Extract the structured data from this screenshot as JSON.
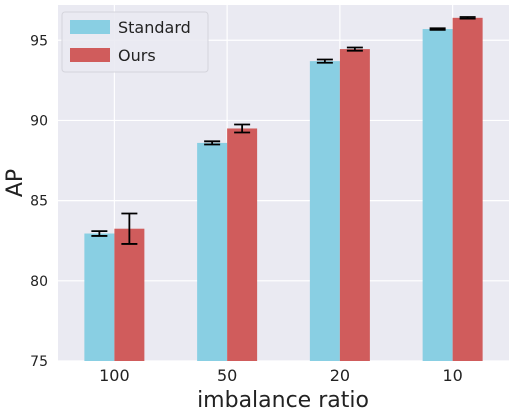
{
  "chart_data": {
    "type": "bar",
    "title": "",
    "xlabel": "imbalance ratio",
    "ylabel": "AP",
    "categories": [
      "100",
      "50",
      "20",
      "10"
    ],
    "ylim": [
      75,
      97.2
    ],
    "yticks": [
      75,
      80,
      85,
      90,
      95
    ],
    "grid": true,
    "legend_position": "top-left",
    "series": [
      {
        "name": "Standard",
        "color": "#89CFE3",
        "values": [
          82.95,
          88.6,
          93.7,
          95.7
        ],
        "errors": [
          0.15,
          0.1,
          0.1,
          0.05
        ]
      },
      {
        "name": "Ours",
        "color": "#D05C5C",
        "values": [
          83.25,
          89.5,
          94.45,
          96.4
        ],
        "errors": [
          0.95,
          0.25,
          0.1,
          0.05
        ]
      }
    ],
    "background_color": "#EAEAF2",
    "grid_color": "#FFFFFF"
  }
}
